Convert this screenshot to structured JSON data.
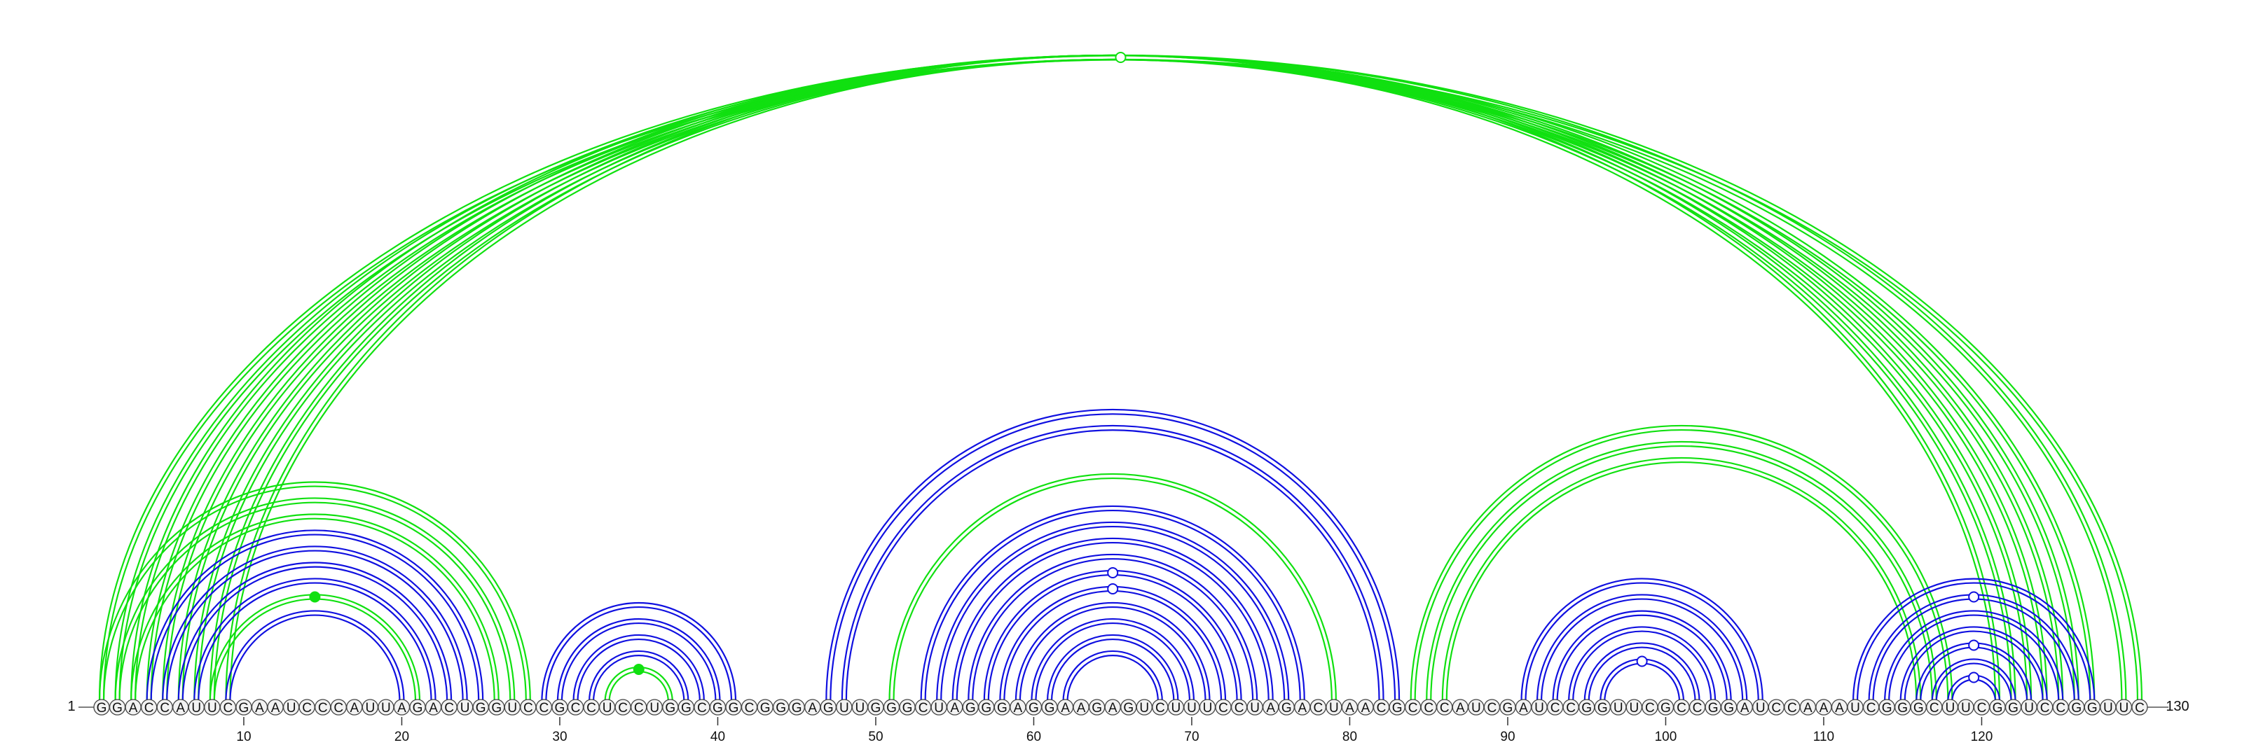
{
  "sequence": "GGACCAUUCGAAUCCCAUUAGACUGGUCCGCCUCCUGGCGGCGGGAGUUGGGCUAGGGAGGAAGAGUCUUUCCUAGACUAACGCCCAUCGAUCCGGUUCGCCGGAUCCAAAUCGGGCUUCGGUCCGGUUC",
  "start_label": "1",
  "end_label": "130",
  "ticks": [
    "10",
    "20",
    "30",
    "40",
    "50",
    "60",
    "70",
    "80",
    "90",
    "100",
    "110",
    "120"
  ],
  "colors": {
    "blue": "#1010e0",
    "green": "#10e010"
  },
  "arc_groups": [
    {
      "color": "green",
      "pairs": [
        [
          1,
          130
        ],
        [
          2,
          129
        ],
        [
          3,
          127
        ],
        [
          4,
          126
        ],
        [
          5,
          125
        ],
        [
          6,
          124
        ],
        [
          7,
          123
        ],
        [
          8,
          122
        ],
        [
          9,
          121
        ]
      ]
    },
    {
      "color": "green",
      "pairs": [
        [
          1,
          28
        ],
        [
          2,
          27
        ],
        [
          3,
          26
        ]
      ]
    },
    {
      "color": "blue",
      "pairs": [
        [
          4,
          25
        ],
        [
          5,
          24
        ],
        [
          6,
          23
        ],
        [
          7,
          22
        ]
      ]
    },
    {
      "color": "green",
      "pairs": [
        [
          8,
          21
        ]
      ]
    },
    {
      "color": "blue",
      "pairs": [
        [
          9,
          20
        ]
      ]
    },
    {
      "color": "blue",
      "pairs": [
        [
          29,
          41
        ],
        [
          30,
          40
        ],
        [
          31,
          39
        ],
        [
          32,
          38
        ]
      ]
    },
    {
      "color": "green",
      "pairs": [
        [
          33,
          37
        ]
      ]
    },
    {
      "color": "blue",
      "pairs": [
        [
          47,
          83
        ],
        [
          48,
          82
        ]
      ]
    },
    {
      "color": "green",
      "pairs": [
        [
          51,
          79
        ]
      ]
    },
    {
      "color": "blue",
      "pairs": [
        [
          53,
          77
        ],
        [
          54,
          76
        ],
        [
          55,
          75
        ],
        [
          56,
          74
        ],
        [
          57,
          73
        ],
        [
          58,
          72
        ],
        [
          59,
          71
        ],
        [
          60,
          70
        ],
        [
          61,
          69
        ],
        [
          62,
          68
        ]
      ]
    },
    {
      "color": "green",
      "pairs": [
        [
          84,
          118
        ],
        [
          85,
          117
        ],
        [
          86,
          116
        ]
      ]
    },
    {
      "color": "blue",
      "pairs": [
        [
          91,
          106
        ],
        [
          92,
          105
        ],
        [
          93,
          104
        ],
        [
          94,
          103
        ],
        [
          95,
          102
        ],
        [
          96,
          101
        ]
      ]
    },
    {
      "color": "blue",
      "pairs": [
        [
          112,
          127
        ],
        [
          113,
          126
        ],
        [
          114,
          125
        ],
        [
          115,
          124
        ],
        [
          116,
          123
        ],
        [
          117,
          122
        ],
        [
          118,
          121
        ]
      ]
    }
  ],
  "markers": [
    {
      "color": "green",
      "at": [
        1,
        130
      ],
      "filled": false
    },
    {
      "color": "green",
      "at": [
        8,
        21
      ],
      "filled": true
    },
    {
      "color": "green",
      "at": [
        33,
        37
      ],
      "filled": true
    },
    {
      "color": "blue",
      "at": [
        57,
        73
      ],
      "filled": false
    },
    {
      "color": "blue",
      "at": [
        58,
        72
      ],
      "filled": false
    },
    {
      "color": "blue",
      "at": [
        96,
        101
      ],
      "filled": false
    },
    {
      "color": "blue",
      "at": [
        113,
        126
      ],
      "filled": false
    },
    {
      "color": "blue",
      "at": [
        116,
        123
      ],
      "filled": false
    },
    {
      "color": "blue",
      "at": [
        118,
        121
      ],
      "filled": false
    }
  ]
}
